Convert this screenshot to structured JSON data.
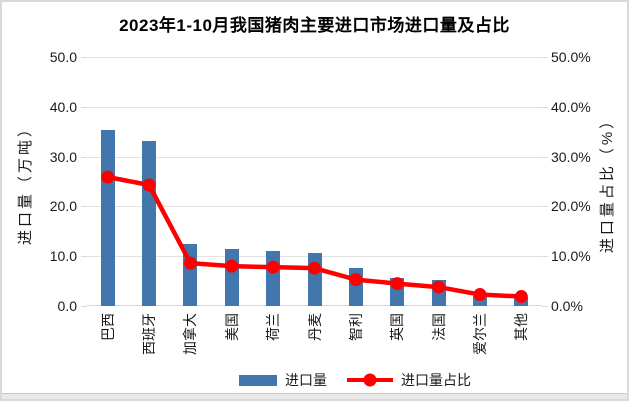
{
  "page": {
    "background": "#FFFFFF",
    "frame_color": "#D9D9D9",
    "bottom_strip_color": "#E9E9E9"
  },
  "chart_data": {
    "type": "bar",
    "title": "2023年1-10月我国猪肉主要进口市场进口量及占比",
    "categories": [
      "巴西",
      "西班牙",
      "加拿大",
      "美国",
      "荷兰",
      "丹麦",
      "智利",
      "英国",
      "法国",
      "爱尔兰",
      "其他"
    ],
    "series": [
      {
        "name": "进口量",
        "type": "bar",
        "axis": "left",
        "color": "#4276AD",
        "values": [
          35.3,
          33.1,
          12.5,
          11.4,
          11.0,
          10.7,
          7.6,
          5.6,
          5.2,
          2.1,
          1.8
        ]
      },
      {
        "name": "进口量占比",
        "type": "line",
        "axis": "right",
        "color": "#FF0000",
        "values": [
          25.9,
          24.3,
          8.6,
          8.0,
          7.8,
          7.6,
          5.3,
          4.5,
          3.8,
          2.3,
          1.9
        ]
      }
    ],
    "left_axis": {
      "title": "进口量（万吨）",
      "min": 0,
      "max": 50,
      "step": 10,
      "tick_labels": [
        "0.0",
        "10.0",
        "20.0",
        "30.0",
        "40.0",
        "50.0"
      ]
    },
    "right_axis": {
      "title": "进口量占比（%）",
      "min": 0,
      "max": 50,
      "step": 10,
      "tick_labels": [
        "0.0%",
        "10.0%",
        "20.0%",
        "30.0%",
        "40.0%",
        "50.0%"
      ]
    },
    "legend": {
      "position": "bottom",
      "items": [
        "进口量",
        "进口量占比"
      ]
    },
    "grid": true,
    "grid_color": "#E3E3E3",
    "axis_line_color": "#D9D9D9"
  }
}
